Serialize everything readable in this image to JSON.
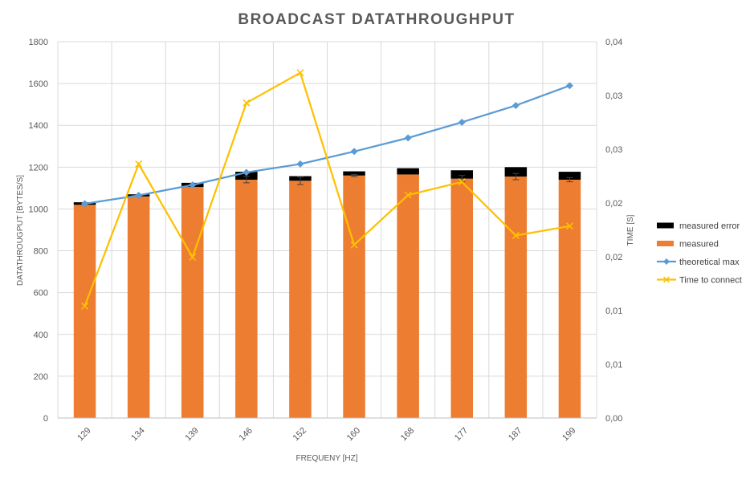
{
  "chart_data": {
    "type": "bar",
    "title": "BROADCAST DATATHROUGHPUT",
    "xlabel": "FREQUENY [HZ]",
    "ylabel": "DATATHROUGPUT [BYTES/S]",
    "y2label": "TIME [S]",
    "categories": [
      "129",
      "134",
      "139",
      "146",
      "152",
      "160",
      "168",
      "177",
      "187",
      "199"
    ],
    "ylim": [
      0,
      1800
    ],
    "yticks": [
      "0",
      "200",
      "400",
      "600",
      "800",
      "1000",
      "1200",
      "1400",
      "1600",
      "1800"
    ],
    "y2lim": [
      0,
      0.04
    ],
    "y2ticks": [
      "0,00",
      "0,01",
      "0,01",
      "0,02",
      "0,02",
      "0,03",
      "0,03",
      "0,04"
    ],
    "grid": true,
    "legend_position": "right",
    "series": [
      {
        "name": "measured",
        "kind": "stacked-bar",
        "color": "#ED7D31",
        "values": [
          1020,
          1060,
          1105,
          1140,
          1135,
          1160,
          1165,
          1145,
          1155,
          1140
        ],
        "error": [
          0,
          0,
          0,
          15,
          18,
          5,
          0,
          15,
          15,
          10
        ]
      },
      {
        "name": "measured error",
        "kind": "stacked-bar",
        "color": "#000000",
        "values": [
          12,
          10,
          20,
          38,
          22,
          20,
          30,
          40,
          45,
          38
        ]
      },
      {
        "name": "theoretical max",
        "kind": "line",
        "axis": "left",
        "color": "#5B9BD5",
        "marker": "diamond",
        "values": [
          1025,
          1065,
          1115,
          1175,
          1215,
          1275,
          1340,
          1415,
          1495,
          1590
        ]
      },
      {
        "name": "Time to connect",
        "kind": "line",
        "axis": "right",
        "color": "#FFC000",
        "marker": "x",
        "values": [
          0.0119,
          0.027,
          0.0171,
          0.0335,
          0.0367,
          0.0184,
          0.0237,
          0.0251,
          0.0194,
          0.0204
        ]
      }
    ]
  }
}
